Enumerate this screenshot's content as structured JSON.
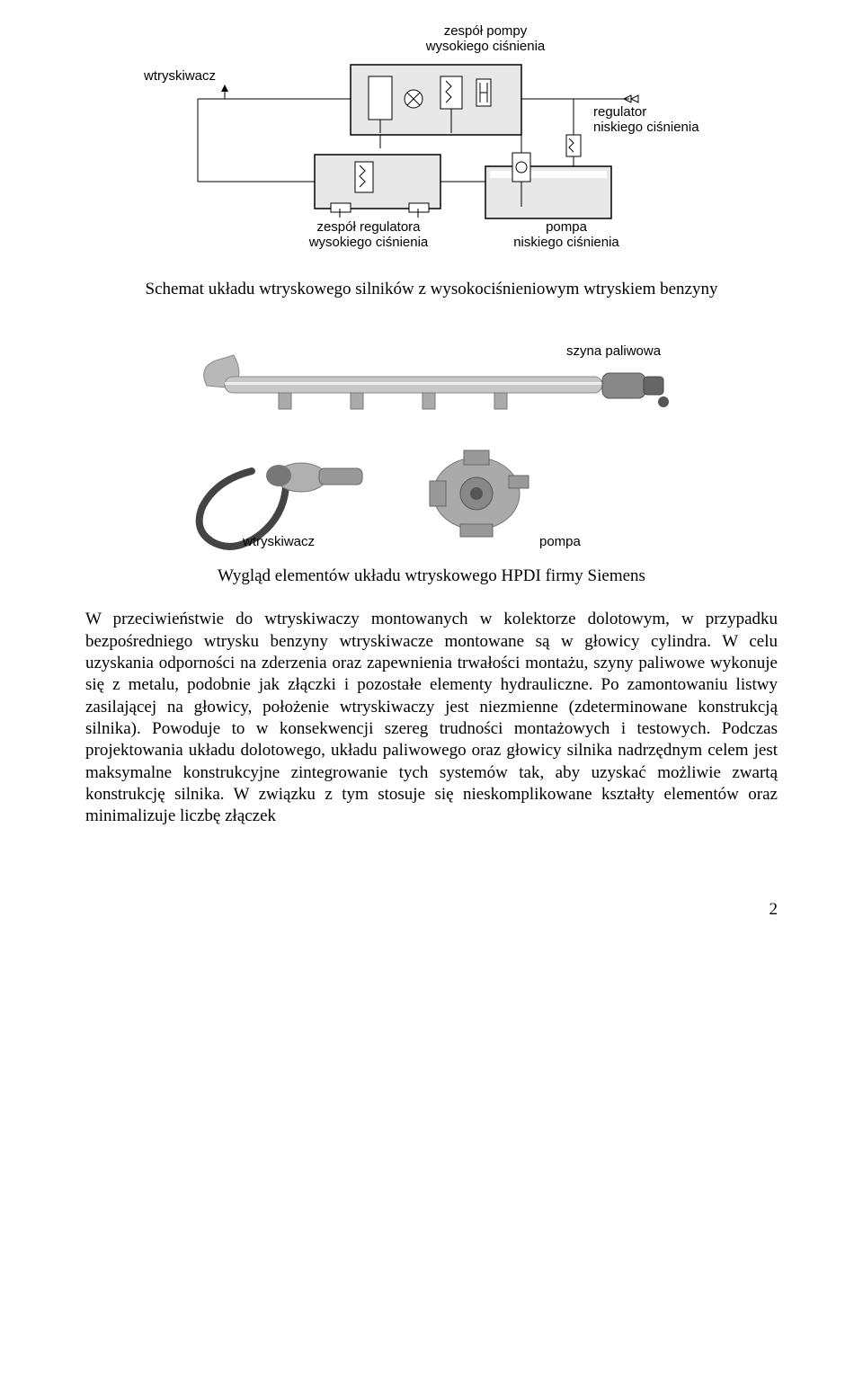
{
  "schematic": {
    "labels": {
      "top_center": "zespół pompy\nwysokiego ciśnienia",
      "left": "wtryskiwacz",
      "right": "regulator\nniskiego ciśnienia",
      "bottom_left": "zespół regulatora\nwysokiego ciśnienia",
      "bottom_right": "pompa\nniskiego ciśnienia"
    },
    "box_fill": "#e8e8e8",
    "stroke": "#000000",
    "tank_fill": "#e8e8e8"
  },
  "caption1": "Schemat układu wtryskowego silników z wysokociśnieniowym wtryskiem benzyny",
  "photo": {
    "labels": {
      "rail": "szyna paliwowa",
      "injector": "wtryskiwacz",
      "pump": "pompa"
    },
    "metal_light": "#cccccc",
    "metal_mid": "#999999",
    "metal_dark": "#666666",
    "cable": "#444444"
  },
  "caption2": "Wygląd elementów układu wtryskowego HPDI firmy Siemens",
  "body": "W przeciwieństwie do wtryskiwaczy montowanych w kolektorze dolotowym, w przypadku bezpośredniego wtrysku benzyny wtryskiwacze montowane są w głowicy cylindra. W celu uzyskania odporności na zderzenia oraz zapewnienia trwałości montażu, szyny paliwowe wykonuje się z metalu, podobnie jak złączki i pozostałe elementy hydrauliczne. Po zamontowaniu listwy zasilającej na głowicy, położenie wtryskiwaczy jest niezmienne (zdeterminowane konstrukcją silnika). Powoduje to w konsekwencji szereg trudności montażowych i testowych. Podczas projektowania układu dolotowego, układu paliwowego oraz głowicy silnika nadrzędnym celem jest maksymalne konstrukcyjne zintegrowanie tych systemów tak, aby uzyskać możliwie zwartą konstrukcję silnika. W związku z tym stosuje się nieskomplikowane kształty elementów oraz minimalizuje liczbę złączek",
  "page_number": "2"
}
